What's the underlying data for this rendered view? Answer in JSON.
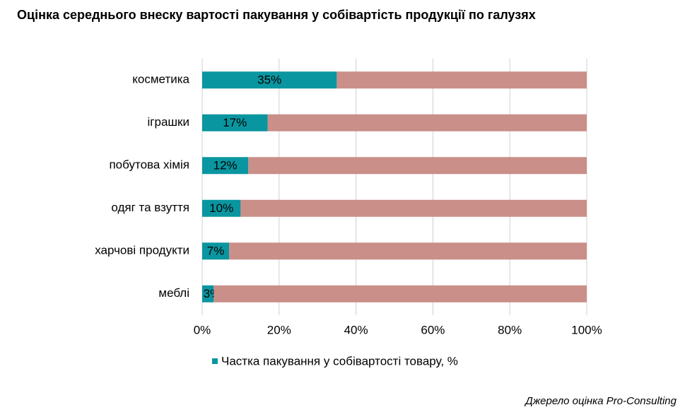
{
  "chart_data": {
    "type": "bar",
    "orientation": "horizontal",
    "stacked": true,
    "title": "Оцінка середнього внеску вартості пакування у собівартість продукції по галузях",
    "categories": [
      "косметика",
      "іграшки",
      "побутова хімія",
      "одяг та взуття",
      "харчові продукти",
      "меблі"
    ],
    "series": [
      {
        "name": "Частка пакування у собівартості товару, %",
        "color": "#0a96a0",
        "values": [
          35,
          17,
          12,
          10,
          7,
          3
        ],
        "value_labels": [
          "35%",
          "17%",
          "12%",
          "10%",
          "7%",
          "3%"
        ]
      },
      {
        "color": "#c98f88",
        "values": [
          65,
          83,
          88,
          90,
          93,
          97
        ]
      }
    ],
    "xlim": [
      0,
      100
    ],
    "xticks": [
      {
        "value": 0,
        "label": "0%"
      },
      {
        "value": 20,
        "label": "20%"
      },
      {
        "value": 40,
        "label": "40%"
      },
      {
        "value": 60,
        "label": "60%"
      },
      {
        "value": 80,
        "label": "80%"
      },
      {
        "value": 100,
        "label": "100%"
      }
    ],
    "grid": true,
    "legend": "bottom",
    "source": "Джерело оцінка Pro-Consulting"
  }
}
